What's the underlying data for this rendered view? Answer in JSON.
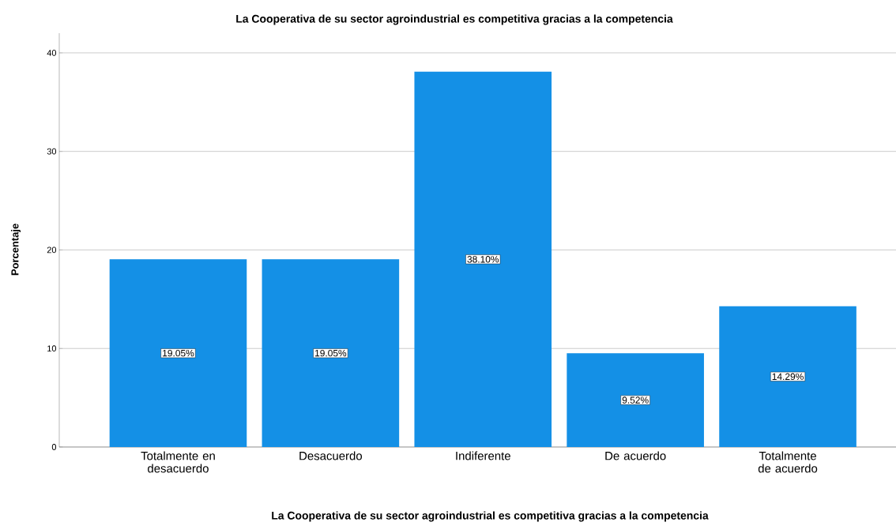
{
  "chart_data": {
    "type": "bar",
    "title": "La Cooperativa de su sector agroindustrial es competitiva gracias a la competencia",
    "xlabel": "La Cooperativa de su sector agroindustrial es competitiva gracias a la competencia",
    "ylabel": "Porcentaje",
    "categories": [
      "Totalmente en desacuerdo",
      "Desacuerdo",
      "Indiferente",
      "De acuerdo",
      "Totalmente de acuerdo"
    ],
    "values": [
      19.05,
      19.05,
      38.1,
      9.52,
      14.29
    ],
    "value_labels": [
      "19.05%",
      "19.05%",
      "38.10%",
      "9.52%",
      "14.29%"
    ],
    "color": "#1490e6",
    "ylim": [
      0,
      42
    ],
    "yticks": [
      0,
      10,
      20,
      30,
      40
    ],
    "grid": "y"
  }
}
